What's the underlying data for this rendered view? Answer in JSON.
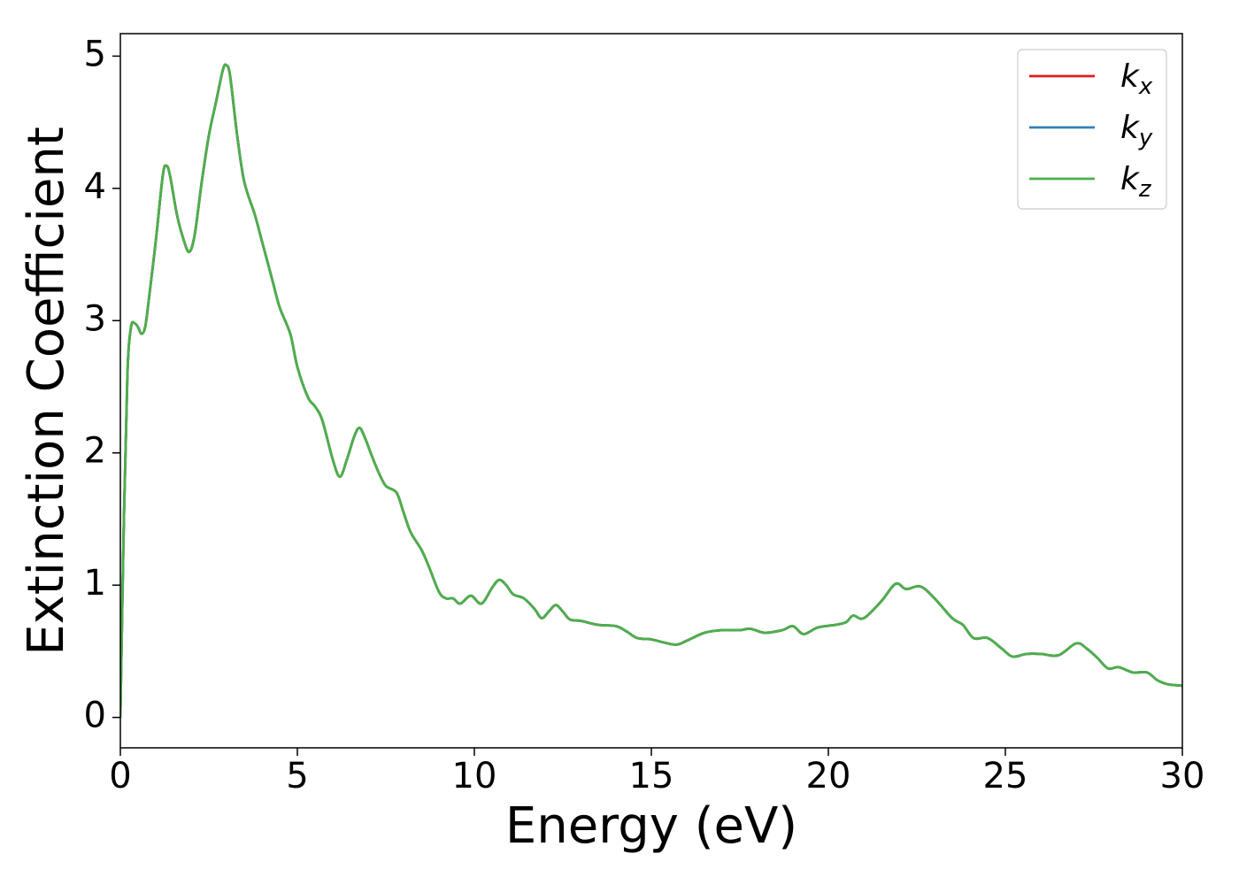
{
  "chart_data": {
    "type": "line",
    "xlabel": "Energy (eV)",
    "ylabel": "Extinction Coefficient",
    "x": [
      0,
      0.1,
      0.2,
      0.3,
      0.4,
      0.5,
      0.6,
      0.7,
      0.8,
      1.0,
      1.2,
      1.3,
      1.4,
      1.6,
      1.8,
      1.95,
      2.1,
      2.3,
      2.5,
      2.7,
      2.9,
      3.0,
      3.1,
      3.3,
      3.5,
      3.8,
      4.0,
      4.3,
      4.5,
      4.8,
      5.0,
      5.3,
      5.5,
      5.7,
      6.0,
      6.2,
      6.4,
      6.6,
      6.75,
      6.9,
      7.1,
      7.3,
      7.5,
      7.8,
      8.0,
      8.2,
      8.5,
      8.7,
      9.0,
      9.2,
      9.4,
      9.6,
      9.9,
      10.2,
      10.5,
      10.7,
      10.9,
      11.1,
      11.4,
      11.7,
      11.9,
      12.1,
      12.3,
      12.5,
      12.7,
      13.0,
      13.5,
      14.0,
      14.3,
      14.6,
      15.0,
      15.3,
      15.7,
      16.0,
      16.5,
      17.0,
      17.5,
      17.8,
      18.2,
      18.7,
      19.0,
      19.3,
      19.7,
      20.2,
      20.5,
      20.7,
      21.0,
      21.5,
      21.9,
      22.2,
      22.6,
      23.0,
      23.5,
      23.8,
      24.1,
      24.5,
      24.9,
      25.2,
      25.6,
      26.0,
      26.5,
      27.0,
      27.3,
      27.6,
      27.9,
      28.2,
      28.6,
      29.0,
      29.3,
      29.6,
      30.0
    ],
    "series": [
      {
        "name": "kx",
        "color": "#e41a1c",
        "values": [
          0,
          1.5,
          2.6,
          2.95,
          2.98,
          2.95,
          2.9,
          2.95,
          3.15,
          3.6,
          4.1,
          4.17,
          4.1,
          3.8,
          3.6,
          3.52,
          3.65,
          4.05,
          4.4,
          4.65,
          4.9,
          4.93,
          4.85,
          4.4,
          4.05,
          3.8,
          3.6,
          3.3,
          3.1,
          2.9,
          2.65,
          2.42,
          2.35,
          2.25,
          1.95,
          1.82,
          1.95,
          2.12,
          2.19,
          2.12,
          1.98,
          1.85,
          1.75,
          1.7,
          1.55,
          1.4,
          1.27,
          1.15,
          0.95,
          0.9,
          0.9,
          0.86,
          0.92,
          0.86,
          0.98,
          1.04,
          1.0,
          0.93,
          0.9,
          0.82,
          0.75,
          0.8,
          0.85,
          0.8,
          0.74,
          0.73,
          0.7,
          0.69,
          0.65,
          0.6,
          0.59,
          0.57,
          0.55,
          0.58,
          0.64,
          0.66,
          0.66,
          0.67,
          0.64,
          0.66,
          0.69,
          0.63,
          0.68,
          0.7,
          0.72,
          0.77,
          0.75,
          0.88,
          1.01,
          0.97,
          0.99,
          0.9,
          0.75,
          0.7,
          0.6,
          0.6,
          0.52,
          0.46,
          0.48,
          0.48,
          0.47,
          0.56,
          0.52,
          0.45,
          0.37,
          0.38,
          0.34,
          0.34,
          0.28,
          0.25,
          0.24
        ]
      },
      {
        "name": "ky",
        "color": "#377eb8",
        "values": [
          0,
          1.5,
          2.6,
          2.95,
          2.98,
          2.95,
          2.9,
          2.95,
          3.15,
          3.6,
          4.1,
          4.17,
          4.1,
          3.8,
          3.6,
          3.52,
          3.65,
          4.05,
          4.4,
          4.65,
          4.9,
          4.93,
          4.85,
          4.4,
          4.05,
          3.8,
          3.6,
          3.3,
          3.1,
          2.9,
          2.65,
          2.42,
          2.35,
          2.25,
          1.95,
          1.82,
          1.95,
          2.12,
          2.19,
          2.12,
          1.98,
          1.85,
          1.75,
          1.7,
          1.55,
          1.4,
          1.27,
          1.15,
          0.95,
          0.9,
          0.9,
          0.86,
          0.92,
          0.86,
          0.98,
          1.04,
          1.0,
          0.93,
          0.9,
          0.82,
          0.75,
          0.8,
          0.85,
          0.8,
          0.74,
          0.73,
          0.7,
          0.69,
          0.65,
          0.6,
          0.59,
          0.57,
          0.55,
          0.58,
          0.64,
          0.66,
          0.66,
          0.67,
          0.64,
          0.66,
          0.69,
          0.63,
          0.68,
          0.7,
          0.72,
          0.77,
          0.75,
          0.88,
          1.01,
          0.97,
          0.99,
          0.9,
          0.75,
          0.7,
          0.6,
          0.6,
          0.52,
          0.46,
          0.48,
          0.48,
          0.47,
          0.56,
          0.52,
          0.45,
          0.37,
          0.38,
          0.34,
          0.34,
          0.28,
          0.25,
          0.24
        ]
      },
      {
        "name": "kz",
        "color": "#4daf4a",
        "values": [
          0,
          1.5,
          2.6,
          2.95,
          2.98,
          2.95,
          2.9,
          2.95,
          3.15,
          3.6,
          4.1,
          4.17,
          4.1,
          3.8,
          3.6,
          3.52,
          3.65,
          4.05,
          4.4,
          4.65,
          4.9,
          4.93,
          4.85,
          4.4,
          4.05,
          3.8,
          3.6,
          3.3,
          3.1,
          2.9,
          2.65,
          2.42,
          2.35,
          2.25,
          1.95,
          1.82,
          1.95,
          2.12,
          2.19,
          2.12,
          1.98,
          1.85,
          1.75,
          1.7,
          1.55,
          1.4,
          1.27,
          1.15,
          0.95,
          0.9,
          0.9,
          0.86,
          0.92,
          0.86,
          0.98,
          1.04,
          1.0,
          0.93,
          0.9,
          0.82,
          0.75,
          0.8,
          0.85,
          0.8,
          0.74,
          0.73,
          0.7,
          0.69,
          0.65,
          0.6,
          0.59,
          0.57,
          0.55,
          0.58,
          0.64,
          0.66,
          0.66,
          0.67,
          0.64,
          0.66,
          0.69,
          0.63,
          0.68,
          0.7,
          0.72,
          0.77,
          0.75,
          0.88,
          1.01,
          0.97,
          0.99,
          0.9,
          0.75,
          0.7,
          0.6,
          0.6,
          0.52,
          0.46,
          0.48,
          0.48,
          0.47,
          0.56,
          0.52,
          0.45,
          0.37,
          0.38,
          0.34,
          0.34,
          0.28,
          0.25,
          0.24
        ]
      }
    ],
    "xlim": [
      0,
      30
    ],
    "xticks": [
      0,
      5,
      10,
      15,
      20,
      25,
      30
    ],
    "ylim": [
      -0.23,
      5.17
    ],
    "yticks": [
      0,
      1,
      2,
      3,
      4,
      5
    ],
    "grid": false,
    "legend": "upper right"
  }
}
